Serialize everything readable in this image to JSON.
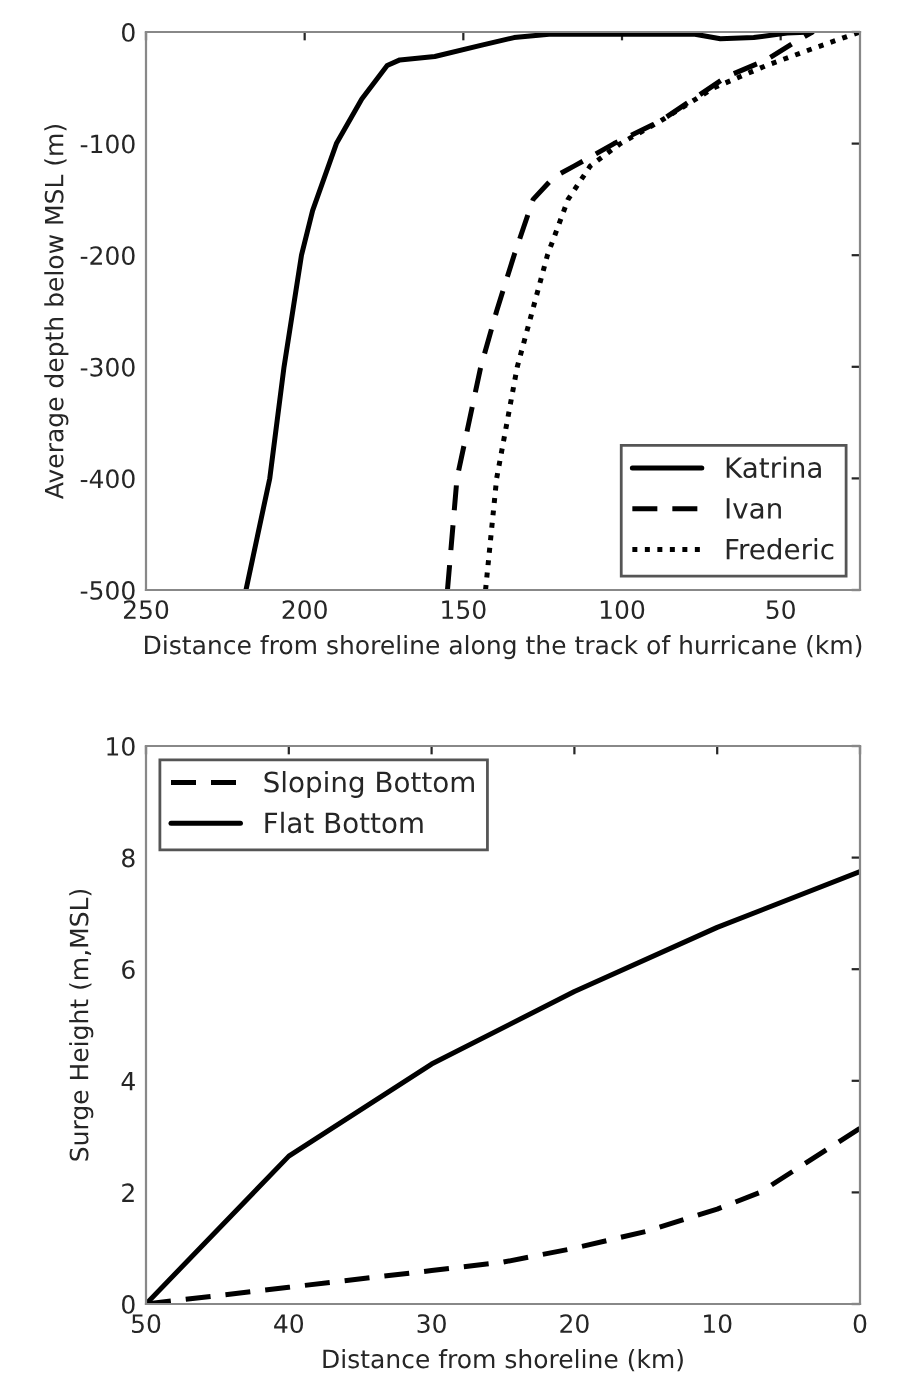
{
  "chart_data": [
    {
      "type": "line",
      "xlabel": "Distance from shoreline along the track of hurricane (km)",
      "ylabel": "Average depth below MSL (m)",
      "xlim": [
        250,
        25
      ],
      "xticks": [
        250,
        200,
        150,
        100,
        50
      ],
      "ylim": [
        -500,
        0
      ],
      "yticks": [
        -500,
        -400,
        -300,
        -200,
        -100,
        0
      ],
      "grid": false,
      "legend": "bottom right",
      "series": [
        {
          "name": "Katrina",
          "color": "#000000",
          "line_style": "solid",
          "x": [
            218.5,
            211,
            206.5,
            201,
            197.5,
            190,
            182,
            174,
            170,
            159,
            144.5,
            134,
            123,
            77,
            69,
            58.5,
            48,
            40
          ],
          "values": [
            -500,
            -400,
            -300,
            -200,
            -160,
            -100,
            -60,
            -30,
            -25,
            -22,
            -12,
            -5,
            -2,
            -2,
            -6,
            -5,
            -1,
            0
          ]
        },
        {
          "name": "Ivan",
          "color": "#000000",
          "line_style": "dashed",
          "x": [
            155,
            152,
            144.5,
            139.5,
            134,
            128,
            121.5,
            115,
            102.5,
            88,
            77.5,
            67,
            54.5,
            46,
            40
          ],
          "values": [
            -500,
            -400,
            -300,
            -250,
            -200,
            -150,
            -130,
            -120,
            -100,
            -80,
            -60,
            -40,
            -25,
            -10,
            0
          ]
        },
        {
          "name": "Frederic",
          "color": "#000000",
          "line_style": "dotted",
          "x": [
            143,
            139.5,
            133,
            123.5,
            117,
            110,
            100.5,
            88,
            71,
            54.5,
            40,
            25
          ],
          "values": [
            -500,
            -400,
            -300,
            -200,
            -150,
            -120,
            -100,
            -80,
            -50,
            -30,
            -15,
            0
          ]
        }
      ]
    },
    {
      "type": "line",
      "xlabel": "Distance from shoreline (km)",
      "ylabel": "Surge Height (m,MSL)",
      "xlim": [
        50,
        0
      ],
      "xticks": [
        50,
        40,
        30,
        20,
        10,
        0
      ],
      "ylim": [
        0,
        10
      ],
      "yticks": [
        0,
        2,
        4,
        6,
        8,
        10
      ],
      "grid": false,
      "legend": "top left",
      "series": [
        {
          "name": "Sloping Bottom",
          "color": "#000000",
          "line_style": "dashed",
          "x": [
            50,
            40,
            30,
            25,
            20,
            15,
            10,
            7,
            0
          ],
          "values": [
            0,
            0.3,
            0.6,
            0.75,
            1.0,
            1.3,
            1.7,
            2.0,
            3.15
          ]
        },
        {
          "name": "Flat Bottom",
          "color": "#000000",
          "line_style": "solid",
          "x": [
            50,
            40,
            30,
            20,
            10,
            0
          ],
          "values": [
            0,
            2.65,
            4.3,
            5.6,
            6.75,
            7.75
          ]
        }
      ]
    }
  ]
}
